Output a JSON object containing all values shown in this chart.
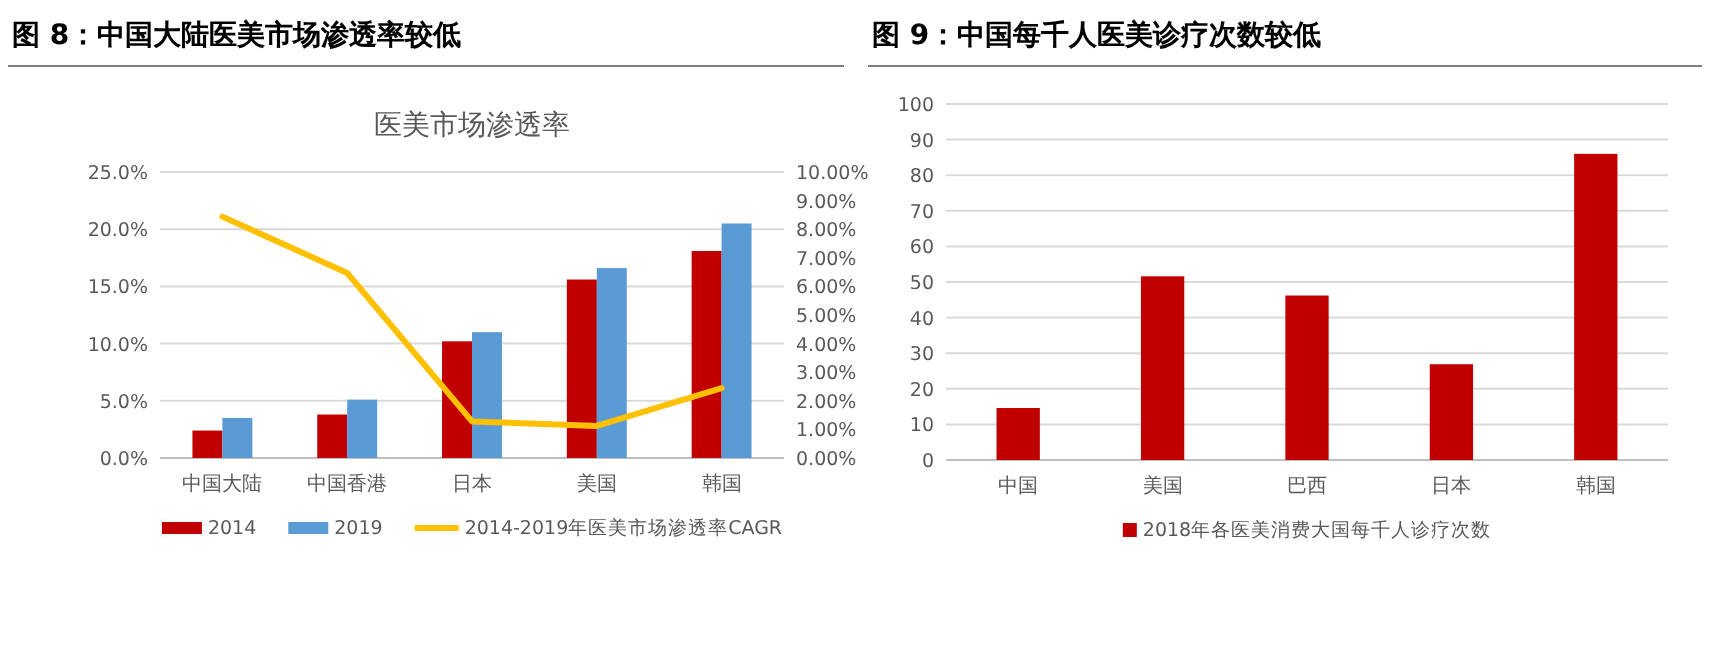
{
  "chart_data": [
    {
      "type": "bar",
      "title": "图 8：中国大陆医美市场渗透率较低",
      "subtitle": "医美市场渗透率",
      "categories": [
        "中国大陆",
        "中国香港",
        "日本",
        "美国",
        "韩国"
      ],
      "series": [
        {
          "name": "2014",
          "color": "#c00000",
          "values": [
            2.4,
            3.8,
            10.2,
            15.6,
            18.1
          ]
        },
        {
          "name": "2019",
          "color": "#5b9bd5",
          "values": [
            3.5,
            5.1,
            11.0,
            16.6,
            20.5
          ]
        },
        {
          "name": "2014-2019年医美市场渗透率CAGR",
          "type": "line",
          "axis": "y2",
          "color": "#ffc000",
          "values": [
            8.44,
            6.47,
            1.28,
            1.12,
            2.44
          ]
        }
      ],
      "ylim": [
        0,
        25
      ],
      "yticks": [
        {
          "value": 0,
          "label": "0.0%"
        },
        {
          "value": 5,
          "label": "5.0%"
        },
        {
          "value": 10,
          "label": "10.0%"
        },
        {
          "value": 15,
          "label": "15.0%"
        },
        {
          "value": 20,
          "label": "20.0%"
        },
        {
          "value": 25,
          "label": "25.0%"
        }
      ],
      "y2lim": [
        0,
        10
      ],
      "y2ticks": [
        {
          "value": 0,
          "label": "0.00%"
        },
        {
          "value": 1,
          "label": "1.00%"
        },
        {
          "value": 2,
          "label": "2.00%"
        },
        {
          "value": 3,
          "label": "3.00%"
        },
        {
          "value": 4,
          "label": "4.00%"
        },
        {
          "value": 5,
          "label": "5.00%"
        },
        {
          "value": 6,
          "label": "6.00%"
        },
        {
          "value": 7,
          "label": "7.00%"
        },
        {
          "value": 8,
          "label": "8.00%"
        },
        {
          "value": 9,
          "label": "9.00%"
        },
        {
          "value": 10,
          "label": "10.00%"
        }
      ],
      "grid": "y",
      "legend": "bottom"
    },
    {
      "type": "bar",
      "title": "图 9：中国每千人医美诊疗次数较低",
      "categories": [
        "中国",
        "美国",
        "巴西",
        "日本",
        "韩国"
      ],
      "series": [
        {
          "name": "2018年各医美消费大国每千人诊疗次数",
          "color": "#c00000",
          "values": [
            14.6,
            51.6,
            46.2,
            26.9,
            86
          ]
        }
      ],
      "ylim": [
        0,
        100
      ],
      "yticks": [
        0,
        10,
        20,
        30,
        40,
        50,
        60,
        70,
        80,
        90,
        100
      ],
      "grid": "y",
      "legend": "bottom"
    }
  ]
}
